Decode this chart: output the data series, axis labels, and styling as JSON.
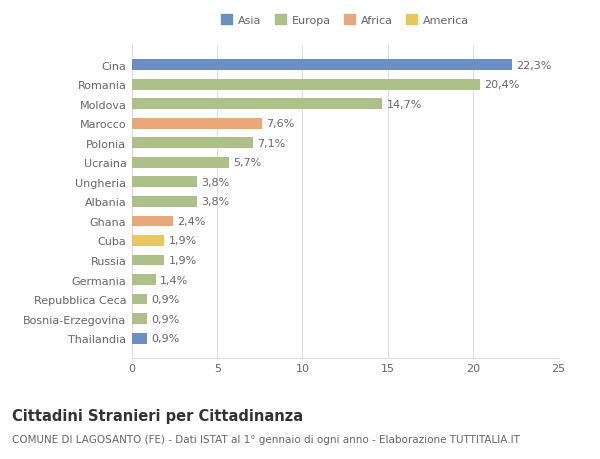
{
  "categories": [
    "Cina",
    "Romania",
    "Moldova",
    "Marocco",
    "Polonia",
    "Ucraina",
    "Ungheria",
    "Albania",
    "Ghana",
    "Cuba",
    "Russia",
    "Germania",
    "Repubblica Ceca",
    "Bosnia-Erzegovina",
    "Thailandia"
  ],
  "values": [
    22.3,
    20.4,
    14.7,
    7.6,
    7.1,
    5.7,
    3.8,
    3.8,
    2.4,
    1.9,
    1.9,
    1.4,
    0.9,
    0.9,
    0.9
  ],
  "labels": [
    "22,3%",
    "20,4%",
    "14,7%",
    "7,6%",
    "7,1%",
    "5,7%",
    "3,8%",
    "3,8%",
    "2,4%",
    "1,9%",
    "1,9%",
    "1,4%",
    "0,9%",
    "0,9%",
    "0,9%"
  ],
  "colors": [
    "#6b8fbe",
    "#adc08a",
    "#adc08a",
    "#e8a87a",
    "#adc08a",
    "#adc08a",
    "#adc08a",
    "#adc08a",
    "#e8a87a",
    "#e8c85a",
    "#adc08a",
    "#adc08a",
    "#adc08a",
    "#adc08a",
    "#6b8fbe"
  ],
  "legend_labels": [
    "Asia",
    "Europa",
    "Africa",
    "America"
  ],
  "legend_colors": [
    "#6b8fbe",
    "#adc08a",
    "#e8a87a",
    "#e8c85a"
  ],
  "title": "Cittadini Stranieri per Cittadinanza",
  "subtitle": "COMUNE DI LAGOSANTO (FE) - Dati ISTAT al 1° gennaio di ogni anno - Elaborazione TUTTITALIA.IT",
  "xlim": [
    0,
    25
  ],
  "xticks": [
    0,
    5,
    10,
    15,
    20,
    25
  ],
  "background_color": "#ffffff",
  "bar_height": 0.55,
  "grid_color": "#dddddd",
  "text_color": "#666666",
  "label_fontsize": 8,
  "tick_fontsize": 8,
  "title_fontsize": 10.5,
  "subtitle_fontsize": 7.5
}
